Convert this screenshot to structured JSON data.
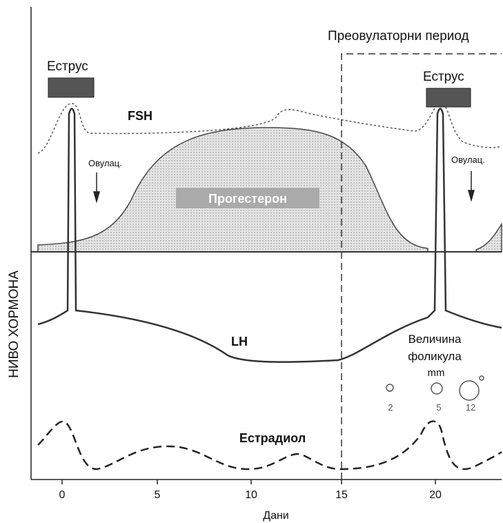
{
  "header": {
    "period": "Преовулаторни период"
  },
  "labels": {
    "estrus_left": "Еструс",
    "estrus_right": "Еструс",
    "fsh": "FSH",
    "ovulation_left": "Овулац.",
    "ovulation_right": "Овулац.",
    "progesterone": "Прогестерон",
    "lh": "LH",
    "follicle_size": [
      "Величина",
      "фоликула",
      "mm"
    ],
    "follicle_sizes": [
      "2",
      "5",
      "12"
    ],
    "estradiol": "Естрадиол"
  },
  "axes": {
    "x_label": "Дани",
    "y_label": "НИВО ХОРМОНА",
    "x_ticks": [
      "0",
      "5",
      "10",
      "15",
      "20"
    ]
  }
}
